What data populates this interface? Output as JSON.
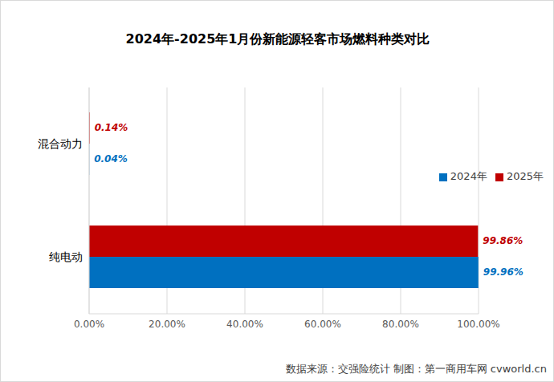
{
  "chart_data": {
    "type": "bar",
    "orientation": "horizontal",
    "title": "2024年-2025年1月份新能源轻客市场燃料种类对比",
    "categories": [
      "混合动力",
      "纯电动"
    ],
    "series": [
      {
        "name": "2025年",
        "color": "#c00000",
        "values": [
          0.14,
          99.86
        ],
        "value_labels": [
          "0.14%",
          "99.86%"
        ]
      },
      {
        "name": "2024年",
        "color": "#0070c0",
        "values": [
          0.04,
          99.96
        ],
        "value_labels": [
          "0.04%",
          "99.96%"
        ]
      }
    ],
    "xlim": [
      0,
      100
    ],
    "xticks": [
      {
        "value": 0,
        "label": "0.00%"
      },
      {
        "value": 20,
        "label": "20.00%"
      },
      {
        "value": 40,
        "label": "40.00%"
      },
      {
        "value": 60,
        "label": "60.00%"
      },
      {
        "value": 80,
        "label": "80.00%"
      },
      {
        "value": 100,
        "label": "100.00%"
      }
    ],
    "grid": true,
    "legend": "right",
    "data_labels": true,
    "annotations": [
      "数据来源：交强险统计 制图：第一商用车网 cvworld.cn"
    ]
  }
}
